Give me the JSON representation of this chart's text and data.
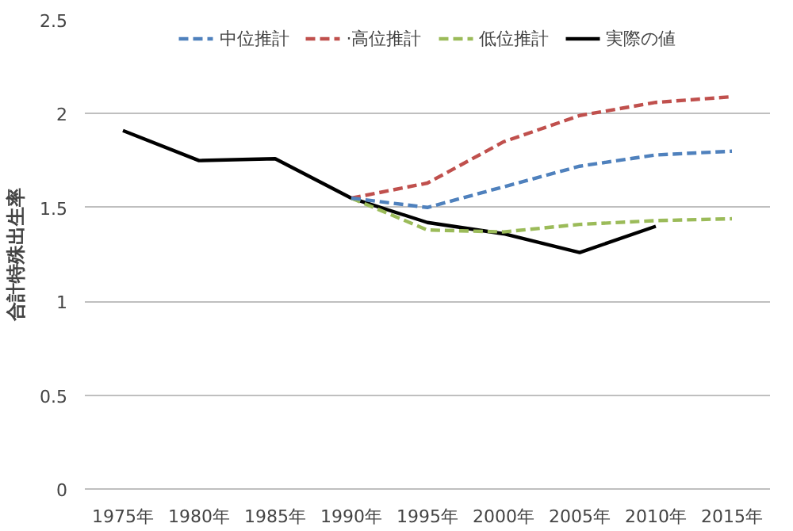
{
  "chart_data": {
    "type": "line",
    "ylabel": "合計特殊出生率",
    "categories": [
      "1975年",
      "1980年",
      "1985年",
      "1990年",
      "1995年",
      "2000年",
      "2005年",
      "2010年",
      "2015年"
    ],
    "series": [
      {
        "name": "中位推計",
        "color": "#4f81bd",
        "line_style": "dashed",
        "values": [
          null,
          null,
          null,
          1.55,
          1.5,
          1.61,
          1.72,
          1.78,
          1.8
        ]
      },
      {
        "name": "·高位推計",
        "color": "#c0504d",
        "line_style": "dashed",
        "values": [
          null,
          null,
          null,
          1.55,
          1.63,
          1.85,
          1.99,
          2.06,
          2.09
        ]
      },
      {
        "name": "低位推計",
        "color": "#9bbb59",
        "line_style": "dashed",
        "values": [
          null,
          null,
          null,
          1.55,
          1.38,
          1.37,
          1.41,
          1.43,
          1.44
        ]
      },
      {
        "name": "実際の値",
        "color": "#000000",
        "line_style": "solid",
        "values": [
          1.91,
          1.75,
          1.76,
          1.55,
          1.42,
          1.36,
          1.26,
          1.4,
          null
        ]
      }
    ],
    "ylim": [
      0,
      2.5
    ],
    "yticks": [
      0,
      0.5,
      1,
      1.5,
      2,
      2.5
    ],
    "grid": "y",
    "legend": "top",
    "marker": "none"
  }
}
